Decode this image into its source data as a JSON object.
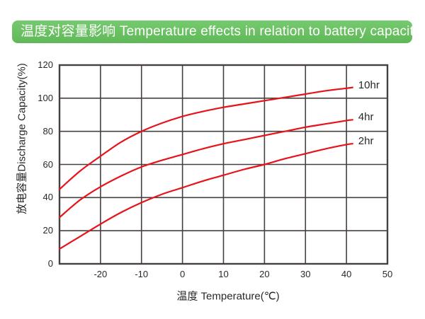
{
  "header": {
    "title": "温度对容量影响 Temperature effects in relation to battery capacity",
    "bg_color": "#68c05f",
    "text_color": "#ffffff"
  },
  "chart_data": {
    "type": "line",
    "title": "",
    "xlabel": "温度 Temperature(℃)",
    "ylabel": "放电容量Discharge Capacity(%)",
    "xlim": [
      -30,
      50
    ],
    "ylim": [
      0,
      120
    ],
    "x_ticks": [
      -20,
      -10,
      0,
      10,
      20,
      30,
      40,
      50
    ],
    "y_ticks": [
      0,
      20,
      40,
      60,
      80,
      100,
      120
    ],
    "grid": true,
    "legend_position": "right-of-line-ends",
    "line_color": "#e8121b",
    "grid_color": "#474040",
    "text_color": "#2b2727",
    "series": [
      {
        "name": "10hr",
        "points": [
          [
            -30,
            45
          ],
          [
            -25,
            56
          ],
          [
            -20,
            65
          ],
          [
            -15,
            73.5
          ],
          [
            -10,
            80
          ],
          [
            -5,
            85
          ],
          [
            0,
            89
          ],
          [
            5,
            92
          ],
          [
            10,
            94.5
          ],
          [
            15,
            96.5
          ],
          [
            20,
            98.5
          ],
          [
            25,
            100.5
          ],
          [
            30,
            102.5
          ],
          [
            35,
            104.5
          ],
          [
            40,
            106
          ],
          [
            41.5,
            106.5
          ]
        ]
      },
      {
        "name": "4hr",
        "points": [
          [
            -30,
            28
          ],
          [
            -25,
            38.5
          ],
          [
            -20,
            46.5
          ],
          [
            -15,
            53
          ],
          [
            -10,
            58.5
          ],
          [
            -5,
            62.5
          ],
          [
            0,
            66
          ],
          [
            5,
            69.5
          ],
          [
            10,
            72.5
          ],
          [
            15,
            75
          ],
          [
            20,
            77.5
          ],
          [
            25,
            80
          ],
          [
            30,
            82.5
          ],
          [
            35,
            84.5
          ],
          [
            40,
            86.5
          ],
          [
            41.5,
            87
          ]
        ]
      },
      {
        "name": "2hr",
        "points": [
          [
            -30,
            9
          ],
          [
            -25,
            16.5
          ],
          [
            -20,
            24
          ],
          [
            -15,
            31
          ],
          [
            -10,
            37
          ],
          [
            -5,
            42
          ],
          [
            0,
            46
          ],
          [
            5,
            50
          ],
          [
            10,
            53.5
          ],
          [
            15,
            57
          ],
          [
            20,
            60
          ],
          [
            25,
            63.5
          ],
          [
            30,
            66.5
          ],
          [
            35,
            69.5
          ],
          [
            40,
            72
          ],
          [
            41.5,
            72.5
          ]
        ]
      }
    ]
  }
}
